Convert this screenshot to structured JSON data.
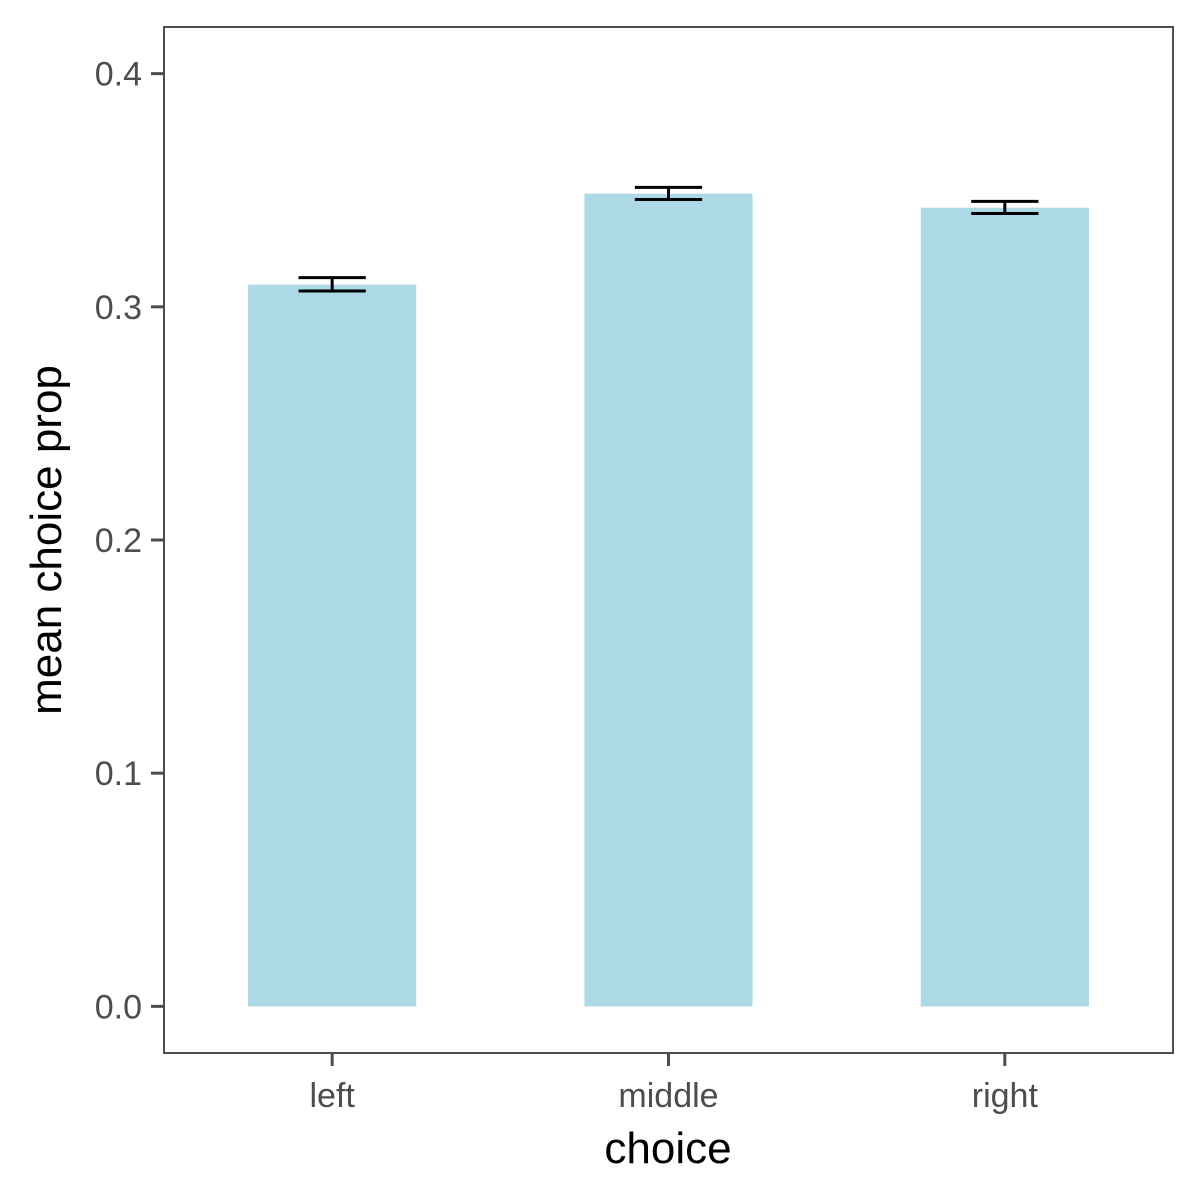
{
  "chart_data": {
    "type": "bar",
    "title": "",
    "xlabel": "choice",
    "ylabel": "mean choice prop",
    "categories": [
      "left",
      "middle",
      "right"
    ],
    "values": [
      0.3095,
      0.3485,
      0.3425
    ],
    "error_bars": [
      {
        "low": 0.3068,
        "high": 0.3125
      },
      {
        "low": 0.346,
        "high": 0.3512
      },
      {
        "low": 0.34,
        "high": 0.3452
      }
    ],
    "ylim": [
      -0.02,
      0.42
    ],
    "yticks": [
      0.0,
      0.1,
      0.2,
      0.3,
      0.4
    ],
    "ytick_labels": [
      "0.0",
      "0.1",
      "0.2",
      "0.3",
      "0.4"
    ],
    "grid": false,
    "legend": "none",
    "colors": {
      "bar": "#add8e6",
      "error_bar": "#000000",
      "panel_border": "#4d4d4d",
      "tick_text": "#4d4d4d",
      "axis_title": "#000000"
    }
  }
}
